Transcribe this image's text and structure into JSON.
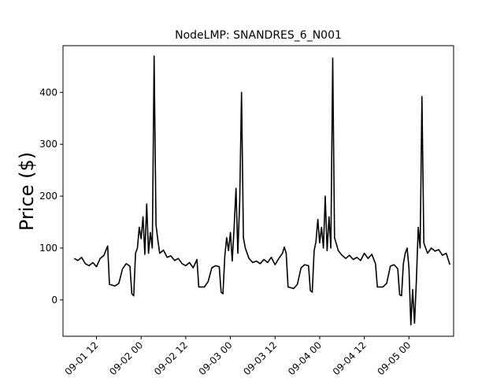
{
  "chart_data": {
    "type": "line",
    "title": "NodeLMP: SNANDRES_6_N001",
    "xlabel": "",
    "ylabel": "Price ($)",
    "x_axis": "datetime",
    "xlim": [
      "2016-09-01T03:00",
      "2016-09-05T12:00"
    ],
    "ylim": [
      -70,
      490
    ],
    "x_ticks": [
      {
        "value": "2016-09-01T12:00",
        "label": "09-01 12"
      },
      {
        "value": "2016-09-02T00:00",
        "label": "09-02 00"
      },
      {
        "value": "2016-09-02T12:00",
        "label": "09-02 12"
      },
      {
        "value": "2016-09-03T00:00",
        "label": "09-03 00"
      },
      {
        "value": "2016-09-03T12:00",
        "label": "09-03 12"
      },
      {
        "value": "2016-09-04T00:00",
        "label": "09-04 00"
      },
      {
        "value": "2016-09-04T12:00",
        "label": "09-04 12"
      },
      {
        "value": "2016-09-05T00:00",
        "label": "09-05 00"
      }
    ],
    "y_ticks": [
      0,
      100,
      200,
      300,
      400
    ],
    "grid": false,
    "series": [
      {
        "color": "#000000",
        "points": [
          [
            "2016-09-01T06:00",
            80
          ],
          [
            "2016-09-01T07:00",
            76
          ],
          [
            "2016-09-01T08:00",
            82
          ],
          [
            "2016-09-01T09:00",
            70
          ],
          [
            "2016-09-01T10:00",
            66
          ],
          [
            "2016-09-01T11:00",
            72
          ],
          [
            "2016-09-01T12:00",
            64
          ],
          [
            "2016-09-01T13:00",
            80
          ],
          [
            "2016-09-01T14:00",
            86
          ],
          [
            "2016-09-01T15:00",
            104
          ],
          [
            "2016-09-01T15:30",
            30
          ],
          [
            "2016-09-01T17:00",
            27
          ],
          [
            "2016-09-01T18:00",
            32
          ],
          [
            "2016-09-01T19:00",
            60
          ],
          [
            "2016-09-01T20:00",
            70
          ],
          [
            "2016-09-01T21:00",
            65
          ],
          [
            "2016-09-01T21:30",
            12
          ],
          [
            "2016-09-01T22:00",
            8
          ],
          [
            "2016-09-01T22:30",
            90
          ],
          [
            "2016-09-01T23:00",
            100
          ],
          [
            "2016-09-01T23:30",
            140
          ],
          [
            "2016-09-02T00:00",
            118
          ],
          [
            "2016-09-02T00:30",
            160
          ],
          [
            "2016-09-02T01:00",
            88
          ],
          [
            "2016-09-02T01:30",
            185
          ],
          [
            "2016-09-02T02:00",
            90
          ],
          [
            "2016-09-02T02:30",
            130
          ],
          [
            "2016-09-02T03:00",
            100
          ],
          [
            "2016-09-02T03:30",
            470
          ],
          [
            "2016-09-02T04:00",
            145
          ],
          [
            "2016-09-02T04:30",
            115
          ],
          [
            "2016-09-02T05:00",
            90
          ],
          [
            "2016-09-02T06:00",
            96
          ],
          [
            "2016-09-02T07:00",
            82
          ],
          [
            "2016-09-02T08:00",
            85
          ],
          [
            "2016-09-02T09:00",
            76
          ],
          [
            "2016-09-02T10:00",
            80
          ],
          [
            "2016-09-02T11:00",
            70
          ],
          [
            "2016-09-02T12:00",
            66
          ],
          [
            "2016-09-02T13:00",
            72
          ],
          [
            "2016-09-02T14:00",
            62
          ],
          [
            "2016-09-02T15:00",
            78
          ],
          [
            "2016-09-02T15:30",
            25
          ],
          [
            "2016-09-02T17:00",
            25
          ],
          [
            "2016-09-02T18:00",
            35
          ],
          [
            "2016-09-02T19:00",
            62
          ],
          [
            "2016-09-02T20:00",
            66
          ],
          [
            "2016-09-02T21:00",
            64
          ],
          [
            "2016-09-02T21:30",
            15
          ],
          [
            "2016-09-02T22:00",
            12
          ],
          [
            "2016-09-02T22:30",
            85
          ],
          [
            "2016-09-02T23:00",
            120
          ],
          [
            "2016-09-02T23:30",
            95
          ],
          [
            "2016-09-03T00:00",
            130
          ],
          [
            "2016-09-03T00:30",
            75
          ],
          [
            "2016-09-03T01:00",
            140
          ],
          [
            "2016-09-03T01:30",
            215
          ],
          [
            "2016-09-03T02:00",
            90
          ],
          [
            "2016-09-03T02:30",
            190
          ],
          [
            "2016-09-03T03:00",
            400
          ],
          [
            "2016-09-03T03:30",
            120
          ],
          [
            "2016-09-03T04:00",
            100
          ],
          [
            "2016-09-03T05:00",
            80
          ],
          [
            "2016-09-03T06:00",
            72
          ],
          [
            "2016-09-03T07:00",
            75
          ],
          [
            "2016-09-03T08:00",
            70
          ],
          [
            "2016-09-03T09:00",
            78
          ],
          [
            "2016-09-03T10:00",
            72
          ],
          [
            "2016-09-03T11:00",
            82
          ],
          [
            "2016-09-03T12:00",
            68
          ],
          [
            "2016-09-03T13:00",
            80
          ],
          [
            "2016-09-03T14:00",
            90
          ],
          [
            "2016-09-03T14:30",
            102
          ],
          [
            "2016-09-03T15:00",
            90
          ],
          [
            "2016-09-03T15:30",
            25
          ],
          [
            "2016-09-03T17:00",
            22
          ],
          [
            "2016-09-03T18:00",
            30
          ],
          [
            "2016-09-03T19:00",
            62
          ],
          [
            "2016-09-03T20:00",
            68
          ],
          [
            "2016-09-03T21:00",
            66
          ],
          [
            "2016-09-03T21:30",
            18
          ],
          [
            "2016-09-03T22:00",
            15
          ],
          [
            "2016-09-03T22:30",
            95
          ],
          [
            "2016-09-03T23:00",
            112
          ],
          [
            "2016-09-03T23:30",
            155
          ],
          [
            "2016-09-04T00:00",
            110
          ],
          [
            "2016-09-04T00:30",
            140
          ],
          [
            "2016-09-04T01:00",
            100
          ],
          [
            "2016-09-04T01:30",
            200
          ],
          [
            "2016-09-04T02:00",
            95
          ],
          [
            "2016-09-04T02:30",
            160
          ],
          [
            "2016-09-04T03:00",
            100
          ],
          [
            "2016-09-04T03:30",
            466
          ],
          [
            "2016-09-04T04:00",
            120
          ],
          [
            "2016-09-04T05:00",
            95
          ],
          [
            "2016-09-04T06:00",
            86
          ],
          [
            "2016-09-04T07:00",
            80
          ],
          [
            "2016-09-04T08:00",
            86
          ],
          [
            "2016-09-04T09:00",
            78
          ],
          [
            "2016-09-04T10:00",
            82
          ],
          [
            "2016-09-04T11:00",
            76
          ],
          [
            "2016-09-04T12:00",
            90
          ],
          [
            "2016-09-04T13:00",
            80
          ],
          [
            "2016-09-04T14:00",
            88
          ],
          [
            "2016-09-04T15:00",
            70
          ],
          [
            "2016-09-04T15:30",
            25
          ],
          [
            "2016-09-04T17:00",
            25
          ],
          [
            "2016-09-04T18:00",
            32
          ],
          [
            "2016-09-04T19:00",
            65
          ],
          [
            "2016-09-04T20:00",
            68
          ],
          [
            "2016-09-04T21:00",
            60
          ],
          [
            "2016-09-04T21:30",
            10
          ],
          [
            "2016-09-04T22:00",
            8
          ],
          [
            "2016-09-04T22:30",
            70
          ],
          [
            "2016-09-04T23:00",
            90
          ],
          [
            "2016-09-04T23:30",
            100
          ],
          [
            "2016-09-05T00:00",
            62
          ],
          [
            "2016-09-05T00:30",
            -48
          ],
          [
            "2016-09-05T01:00",
            20
          ],
          [
            "2016-09-05T01:30",
            -45
          ],
          [
            "2016-09-05T02:00",
            40
          ],
          [
            "2016-09-05T02:30",
            140
          ],
          [
            "2016-09-05T03:00",
            100
          ],
          [
            "2016-09-05T03:30",
            392
          ],
          [
            "2016-09-05T04:00",
            110
          ],
          [
            "2016-09-05T05:00",
            90
          ],
          [
            "2016-09-05T06:00",
            100
          ],
          [
            "2016-09-05T07:00",
            94
          ],
          [
            "2016-09-05T08:00",
            97
          ],
          [
            "2016-09-05T09:00",
            86
          ],
          [
            "2016-09-05T10:00",
            90
          ],
          [
            "2016-09-05T11:00",
            68
          ]
        ]
      }
    ]
  }
}
